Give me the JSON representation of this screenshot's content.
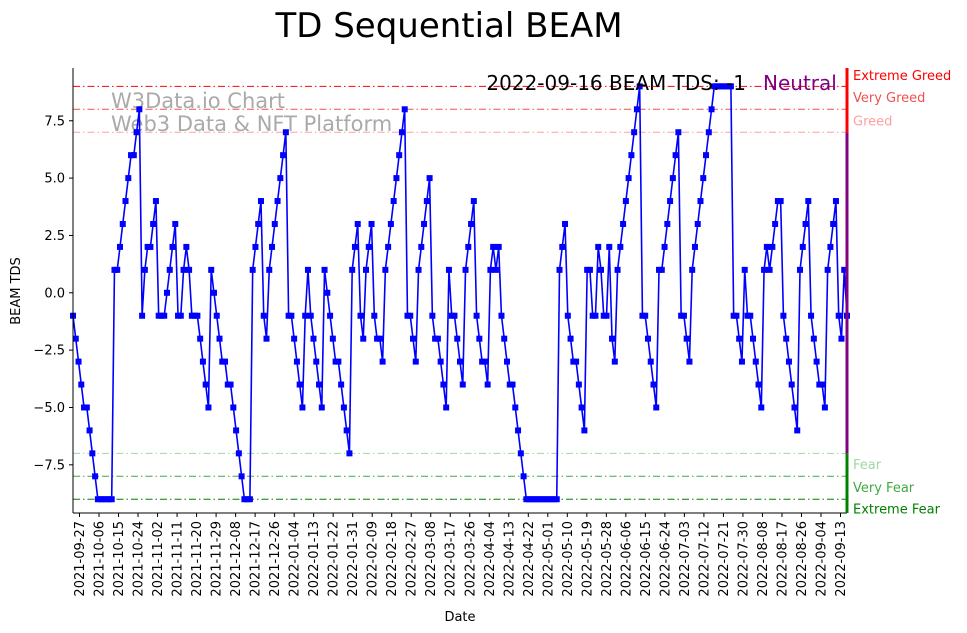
{
  "chart_data": {
    "type": "line",
    "title": "TD Sequential BEAM",
    "xlabel": "Date",
    "ylabel": "BEAM TDS",
    "ylim": [
      -9.6,
      9.8
    ],
    "yticks": [
      -7.5,
      -5.0,
      -2.5,
      0.0,
      2.5,
      5.0,
      7.5
    ],
    "ytick_labels": [
      "−7.5",
      "−5.0",
      "−2.5",
      "0.0",
      "2.5",
      "5.0",
      "7.5"
    ],
    "x_start": "2021-09-24",
    "x_end": "2022-09-16",
    "xtick_labels": [
      "2021-09-27",
      "2021-10-06",
      "2021-10-15",
      "2021-10-24",
      "2021-11-02",
      "2021-11-11",
      "2021-11-20",
      "2021-11-29",
      "2021-12-08",
      "2021-12-17",
      "2021-12-26",
      "2022-01-04",
      "2022-01-13",
      "2022-01-22",
      "2022-01-31",
      "2022-02-09",
      "2022-02-18",
      "2022-02-27",
      "2022-03-08",
      "2022-03-17",
      "2022-03-26",
      "2022-04-04",
      "2022-04-13",
      "2022-04-22",
      "2022-05-01",
      "2022-05-10",
      "2022-05-19",
      "2022-05-28",
      "2022-06-06",
      "2022-06-15",
      "2022-06-24",
      "2022-07-03",
      "2022-07-12",
      "2022-07-21",
      "2022-07-30",
      "2022-08-08",
      "2022-08-17",
      "2022-08-26",
      "2022-09-04",
      "2022-09-13"
    ],
    "series": [
      {
        "name": "BEAM TDS",
        "color": "#0000ff",
        "values": [
          -1,
          -2,
          -3,
          -4,
          -5,
          -5,
          -6,
          -7,
          -8,
          -9,
          -9,
          -9,
          -9,
          -9,
          -9,
          1,
          1,
          2,
          3,
          4,
          5,
          6,
          6,
          7,
          8,
          -1,
          1,
          2,
          2,
          3,
          4,
          -1,
          -1,
          -1,
          0,
          1,
          2,
          3,
          -1,
          -1,
          1,
          2,
          1,
          -1,
          -1,
          -1,
          -2,
          -3,
          -4,
          -5,
          1,
          0,
          -1,
          -2,
          -3,
          -3,
          -4,
          -4,
          -5,
          -6,
          -7,
          -8,
          -9,
          -9,
          -9,
          1,
          2,
          3,
          4,
          -1,
          -2,
          1,
          2,
          3,
          4,
          5,
          6,
          7,
          -1,
          -1,
          -2,
          -3,
          -4,
          -5,
          -1,
          1,
          -1,
          -2,
          -3,
          -4,
          -5,
          1,
          0,
          -1,
          -2,
          -3,
          -3,
          -4,
          -5,
          -6,
          -7,
          1,
          2,
          3,
          -1,
          -2,
          1,
          2,
          3,
          -1,
          -2,
          -2,
          -3,
          1,
          2,
          3,
          4,
          5,
          6,
          7,
          8,
          -1,
          -1,
          -2,
          -3,
          1,
          2,
          3,
          4,
          5,
          -1,
          -2,
          -2,
          -3,
          -4,
          -5,
          1,
          -1,
          -1,
          -2,
          -3,
          -4,
          1,
          2,
          3,
          4,
          -1,
          -2,
          -3,
          -3,
          -4,
          1,
          2,
          1,
          2,
          -1,
          -2,
          -3,
          -4,
          -4,
          -5,
          -6,
          -7,
          -8,
          -9,
          -9,
          -9,
          -9,
          -9,
          -9,
          -9,
          -9,
          -9,
          -9,
          -9,
          -9,
          1,
          2,
          3,
          -1,
          -2,
          -3,
          -3,
          -4,
          -5,
          -6,
          1,
          1,
          -1,
          -1,
          2,
          1,
          -1,
          -1,
          2,
          -2,
          -3,
          1,
          2,
          3,
          4,
          5,
          6,
          7,
          8,
          9,
          -1,
          -1,
          -2,
          -3,
          -4,
          -5,
          1,
          1,
          2,
          3,
          4,
          5,
          6,
          7,
          -1,
          -1,
          -2,
          -3,
          1,
          2,
          3,
          4,
          5,
          6,
          7,
          8,
          9,
          9,
          9,
          9,
          9,
          9,
          9,
          -1,
          -1,
          -2,
          -3,
          1,
          -1,
          -1,
          -2,
          -3,
          -4,
          -5,
          1,
          2,
          1,
          2,
          3,
          4,
          4,
          -1,
          -2,
          -3,
          -4,
          -5,
          -6,
          1,
          2,
          3,
          4,
          -1,
          -2,
          -3,
          -4,
          -4,
          -5,
          1,
          2,
          3,
          4,
          -1,
          -2,
          1,
          -1
        ]
      }
    ],
    "zones": [
      {
        "label": "Extreme Greed",
        "value": 9,
        "color": "#ff0000"
      },
      {
        "label": "Very Greed",
        "value": 8,
        "color": "#f05050"
      },
      {
        "label": "Greed",
        "value": 7,
        "color": "#ffa0a0"
      },
      {
        "label": "Fear",
        "value": -7,
        "color": "#a0d8a0"
      },
      {
        "label": "Very Fear",
        "value": -8,
        "color": "#40a840"
      },
      {
        "label": "Extreme Fear",
        "value": -9,
        "color": "#008000"
      }
    ],
    "status_bar_colors": {
      "top": "#ff0000",
      "middle": "#800080",
      "bottom": "#008000"
    },
    "annotation": {
      "date_text": "2022-09-16 BEAM TDS: -1",
      "status_text": "Neutral"
    },
    "watermark": {
      "line1": "W3Data.io Chart",
      "line2": "Web3 Data & NFT Platform"
    }
  }
}
